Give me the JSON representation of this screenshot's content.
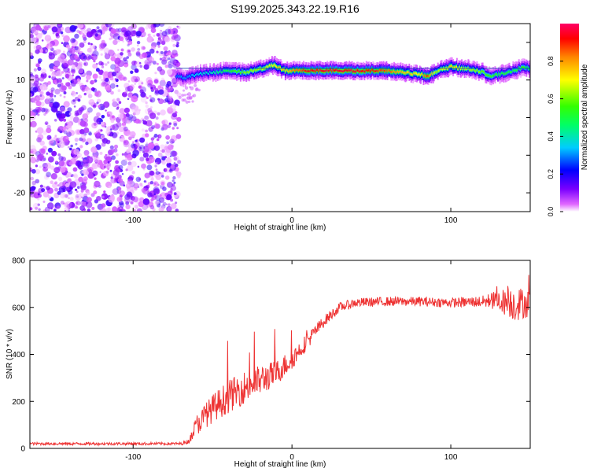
{
  "title": "S199.2025.343.22.19.R16",
  "chart_data": [
    {
      "type": "heatmap",
      "xlabel": "Height of straight line (km)",
      "ylabel": "Frequency (Hz)",
      "xlim": [
        -165,
        150
      ],
      "ylim": [
        -25,
        25
      ],
      "xticks": [
        -100,
        0,
        100
      ],
      "yticks": [
        -20,
        -10,
        0,
        10,
        20
      ],
      "colorbar": {
        "label": "Normalized spectral amplitude",
        "range": [
          0,
          1
        ],
        "ticks": [
          0.0,
          0.2,
          0.4,
          0.6,
          0.8
        ],
        "tick_labels": [
          "0.0",
          "0.2",
          "0.4",
          "0.6",
          "0.8"
        ]
      },
      "noise_region_x": [
        -165,
        -73
      ],
      "ridge": {
        "x": [
          -73,
          -68,
          -60,
          -50,
          -40,
          -30,
          -20,
          -12,
          -5,
          0,
          10,
          20,
          30,
          40,
          50,
          60,
          70,
          80,
          85,
          90,
          95,
          100,
          110,
          120,
          125,
          130,
          140,
          145,
          150
        ],
        "frequency": [
          11,
          10.5,
          11.5,
          12,
          12.5,
          12,
          13,
          14,
          12.5,
          12.5,
          12.5,
          12.5,
          12.5,
          12.5,
          12.5,
          12.5,
          12,
          11.5,
          11,
          12,
          13,
          13.5,
          13,
          12,
          11,
          11.5,
          12.5,
          13.5,
          13
        ],
        "amplitude": [
          0.3,
          0.3,
          0.35,
          0.4,
          0.5,
          0.6,
          0.65,
          0.7,
          0.75,
          0.8,
          0.92,
          0.95,
          0.95,
          0.95,
          0.9,
          0.85,
          0.75,
          0.7,
          0.9,
          0.6,
          0.7,
          0.75,
          0.65,
          0.6,
          0.55,
          0.5,
          0.5,
          0.55,
          0.45
        ]
      }
    },
    {
      "type": "line",
      "xlabel": "Height of straight line (km)",
      "ylabel": "SNR (10 * v/v)",
      "xlim": [
        -165,
        150
      ],
      "ylim": [
        0,
        800
      ],
      "xticks": [
        -100,
        0,
        100
      ],
      "yticks": [
        0,
        200,
        400,
        600,
        800
      ],
      "series": [
        {
          "color": "#ee3333",
          "envelope_x": [
            -165,
            -70,
            -65,
            -60,
            -50,
            -40,
            -30,
            -20,
            -10,
            0,
            10,
            20,
            30,
            40,
            60,
            80,
            100,
            120,
            130,
            140,
            150
          ],
          "envelope_y": [
            20,
            20,
            30,
            100,
            170,
            220,
            260,
            290,
            320,
            380,
            460,
            540,
            600,
            620,
            625,
            625,
            620,
            625,
            630,
            615,
            620
          ],
          "envelope_spread": [
            12,
            12,
            20,
            90,
            120,
            140,
            140,
            130,
            110,
            90,
            70,
            50,
            40,
            40,
            40,
            40,
            40,
            50,
            90,
            150,
            120
          ]
        }
      ]
    }
  ]
}
